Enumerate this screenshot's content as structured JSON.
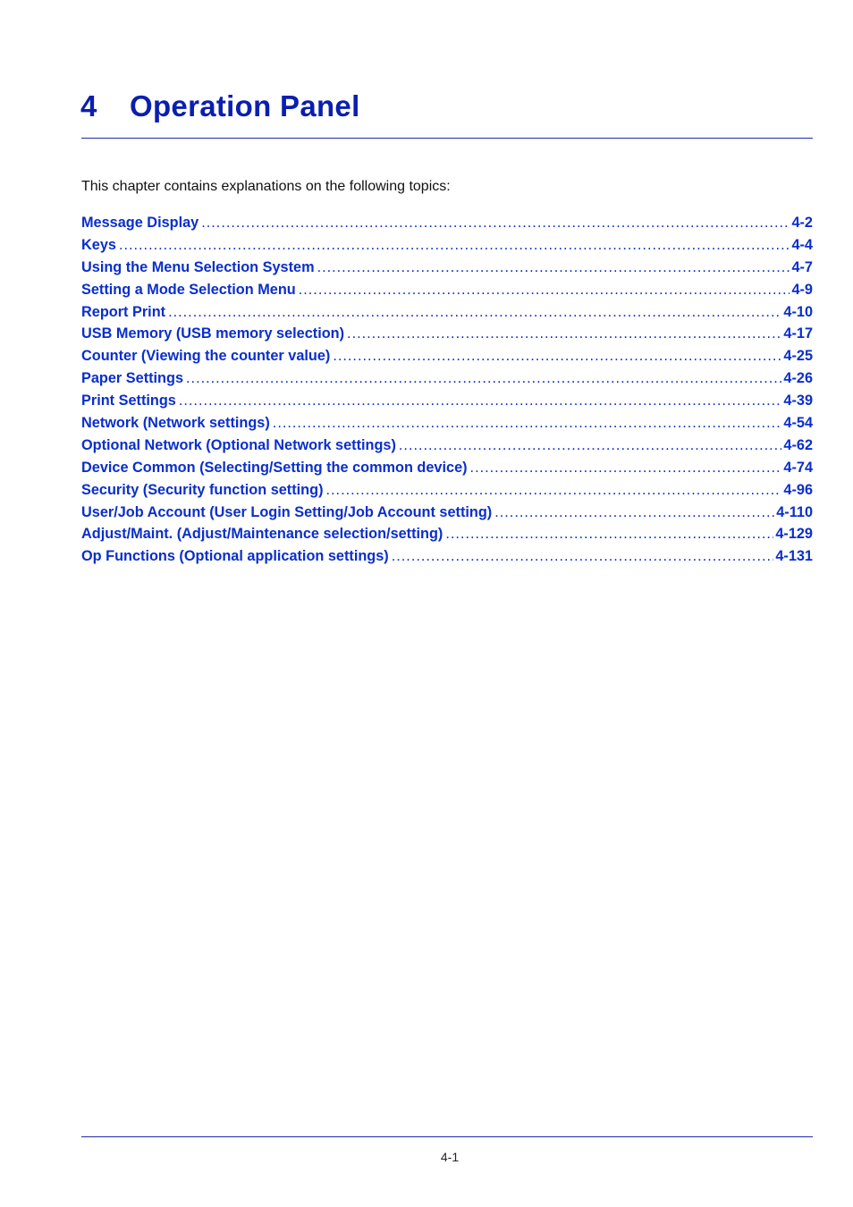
{
  "chapter": {
    "number": "4",
    "title": "Operation Panel"
  },
  "intro": "This chapter contains explanations on the following topics:",
  "toc": [
    {
      "label": "Message Display",
      "page": "4-2"
    },
    {
      "label": "Keys",
      "page": "4-4"
    },
    {
      "label": "Using the Menu Selection System",
      "page": "4-7"
    },
    {
      "label": "Setting a Mode Selection Menu",
      "page": "4-9"
    },
    {
      "label": "Report Print",
      "page": "4-10"
    },
    {
      "label": "USB Memory (USB memory selection)",
      "page": "4-17"
    },
    {
      "label": "Counter (Viewing the counter value)",
      "page": "4-25"
    },
    {
      "label": "Paper Settings",
      "page": "4-26"
    },
    {
      "label": "Print Settings",
      "page": "4-39"
    },
    {
      "label": "Network (Network settings)",
      "page": "4-54"
    },
    {
      "label": "Optional Network (Optional Network settings)",
      "page": "4-62"
    },
    {
      "label": "Device Common (Selecting/Setting the common device)",
      "page": "4-74"
    },
    {
      "label": "Security (Security function setting)",
      "page": "4-96"
    },
    {
      "label": "User/Job Account (User Login Setting/Job Account setting)",
      "page": "4-110"
    },
    {
      "label": "Adjust/Maint. (Adjust/Maintenance selection/setting)",
      "page": "4-129"
    },
    {
      "label": "Op Functions (Optional application settings)",
      "page": "4-131"
    }
  ],
  "footer": {
    "page_number": "4-1"
  },
  "colors": {
    "title": "#0a1fae",
    "link": "#0a2ecc",
    "rule": "#1a2ab0"
  }
}
